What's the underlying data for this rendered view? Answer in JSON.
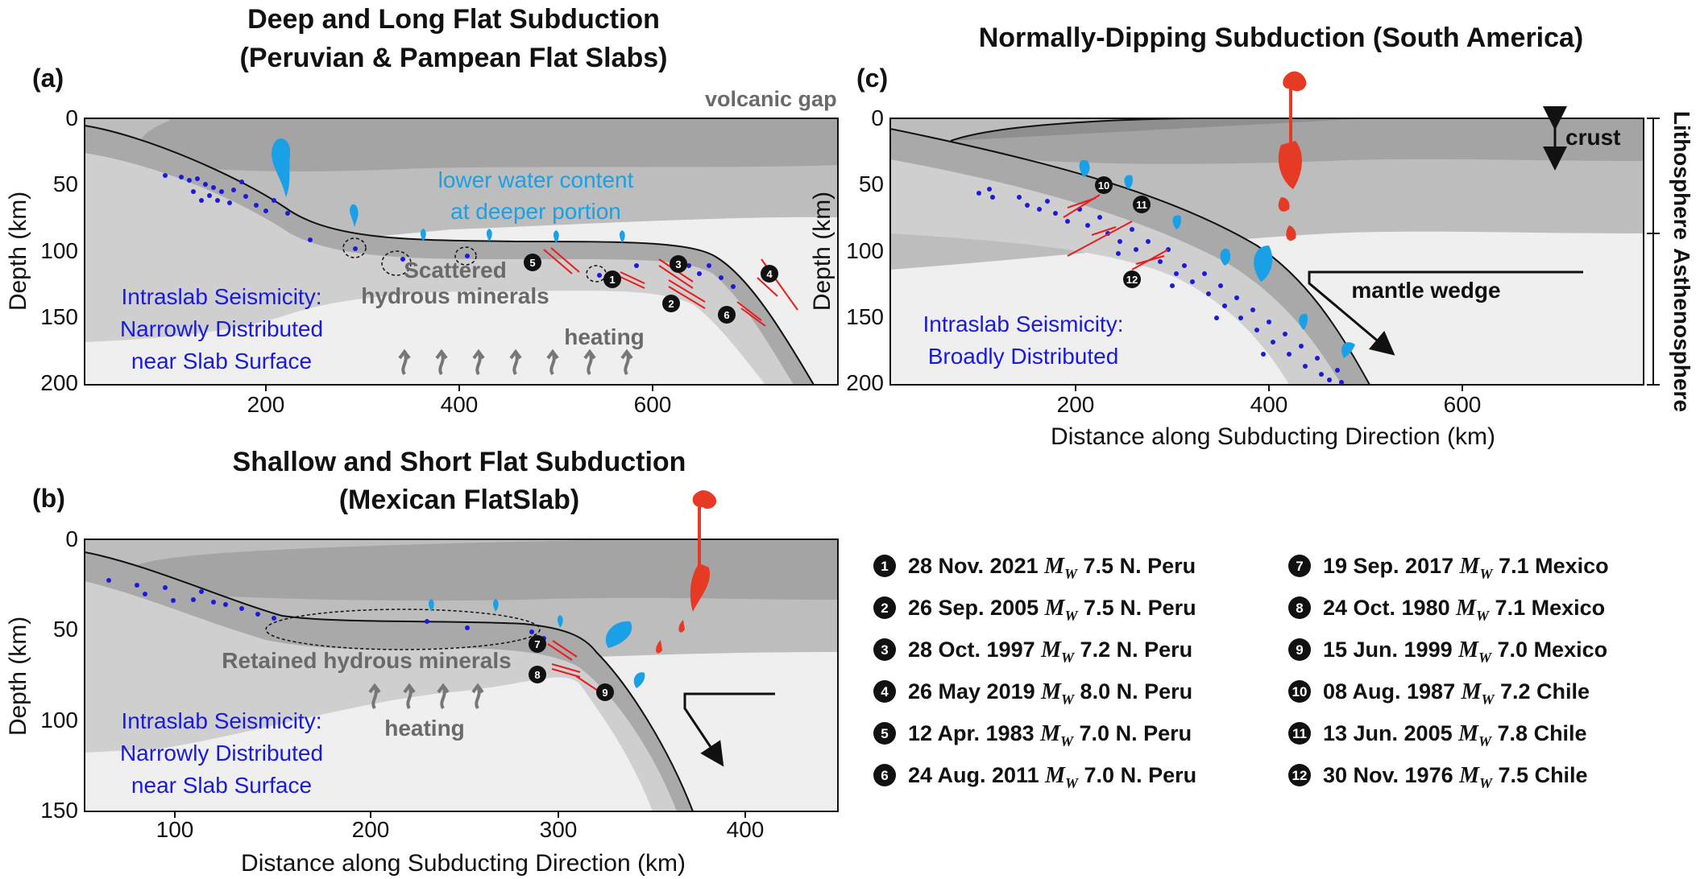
{
  "panel_a": {
    "tag": "(a)",
    "title_line1": "Deep and Long Flat Subduction",
    "title_line2": "(Peruvian & Pampean Flat Slabs)",
    "y_axis_label": "Depth (km)",
    "y_ticks": [
      "0",
      "50",
      "100",
      "150",
      "200"
    ],
    "x_ticks": [
      "200",
      "400",
      "600"
    ],
    "volcanic_gap": "volcanic gap",
    "water_line1": "lower water content",
    "water_line2": "at deeper portion",
    "hydrous_line1": "Scattered",
    "hydrous_line2": "hydrous minerals",
    "heating": "heating",
    "seis_line1": "Intraslab Seismicity:",
    "seis_line2": "Narrowly Distributed",
    "seis_line3": "near Slab Surface",
    "event_markers": [
      "1",
      "2",
      "3",
      "4",
      "5",
      "6"
    ]
  },
  "panel_b": {
    "tag": "(b)",
    "title_line1": "Shallow and Short Flat Subduction",
    "title_line2": "(Mexican FlatSlab)",
    "y_axis_label": "Depth (km)",
    "y_ticks": [
      "0",
      "50",
      "100",
      "150"
    ],
    "x_ticks": [
      "100",
      "200",
      "300",
      "400"
    ],
    "x_axis_label": "Distance along Subducting Direction (km)",
    "hydrous": "Retained hydrous minerals",
    "heating": "heating",
    "seis_line1": "Intraslab Seismicity:",
    "seis_line2": "Narrowly Distributed",
    "seis_line3": "near Slab Surface",
    "event_markers": [
      "7",
      "8",
      "9"
    ]
  },
  "panel_c": {
    "tag": "(c)",
    "title": "Normally-Dipping Subduction (South America)",
    "y_axis_label": "Depth (km)",
    "y_ticks": [
      "0",
      "50",
      "100",
      "150",
      "200"
    ],
    "x_ticks": [
      "200",
      "400",
      "600"
    ],
    "x_axis_label": "Distance along Subducting Direction (km)",
    "crust": "crust",
    "lithosphere": "Lithosphere",
    "asthenosphere": "Asthenosphere",
    "mantle_wedge": "mantle wedge",
    "seis_line1": "Intraslab Seismicity:",
    "seis_line2": "Broadly Distributed",
    "event_markers": [
      "10",
      "11",
      "12"
    ]
  },
  "legend": [
    {
      "n": "1",
      "date": "28 Nov. 2021",
      "mag": "7.5",
      "region": "N. Peru"
    },
    {
      "n": "2",
      "date": "26 Sep. 2005",
      "mag": "7.5",
      "region": "N. Peru"
    },
    {
      "n": "3",
      "date": "28 Oct. 1997",
      "mag": "7.2",
      "region": "N. Peru"
    },
    {
      "n": "4",
      "date": "26 May 2019",
      "mag": "8.0",
      "region": "N. Peru"
    },
    {
      "n": "5",
      "date": "12 Apr. 1983",
      "mag": "7.0",
      "region": "N. Peru"
    },
    {
      "n": "6",
      "date": "24 Aug. 2011",
      "mag": "7.0",
      "region": "N. Peru"
    },
    {
      "n": "7",
      "date": "19 Sep. 2017",
      "mag": "7.1",
      "region": "Mexico"
    },
    {
      "n": "8",
      "date": "24 Oct. 1980",
      "mag": "7.1",
      "region": "Mexico"
    },
    {
      "n": "9",
      "date": "15 Jun. 1999",
      "mag": "7.0",
      "region": "Mexico"
    },
    {
      "n": "10",
      "date": "08 Aug. 1987",
      "mag": "7.2",
      "region": "Chile"
    },
    {
      "n": "11",
      "date": "13 Jun. 2005",
      "mag": "7.8",
      "region": "Chile"
    },
    {
      "n": "12",
      "date": "30 Nov. 1976",
      "mag": "7.5",
      "region": "Chile"
    }
  ],
  "magnitude_symbol": "M",
  "magnitude_subscript": "W",
  "colors": {
    "seismicity": "#1a1adb",
    "water": "#1aa0e6",
    "magma": "#e63a25",
    "fault": "#e81c1c",
    "hydrous_text": "#6a6a6a"
  }
}
